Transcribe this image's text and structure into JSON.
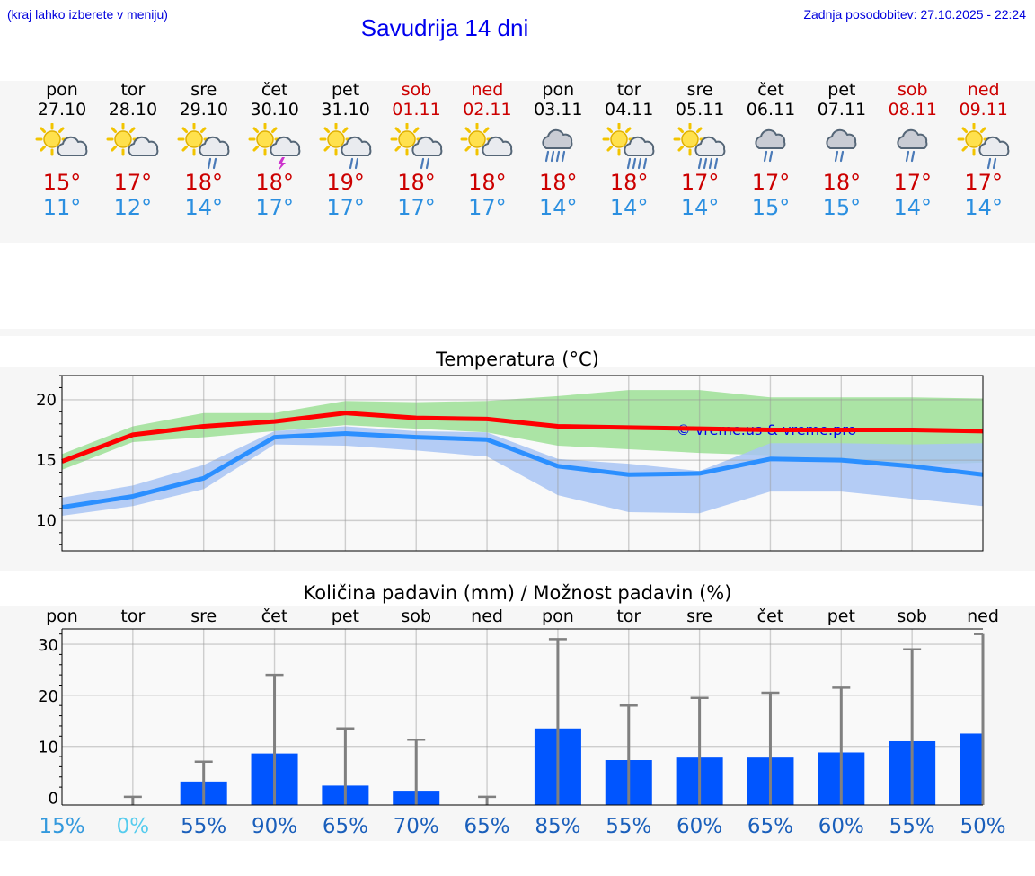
{
  "header": {
    "note": "(kraj lahko izberete v meniju)",
    "title": "Savudrija 14 dni",
    "updated": "Zadnja posodobitev: 27.10.2025 - 22:24"
  },
  "days": [
    {
      "name": "pon",
      "date": "27.10",
      "max": "15°",
      "min": "11°",
      "icon": "sun-cloud-icon",
      "weekend": false
    },
    {
      "name": "tor",
      "date": "28.10",
      "max": "17°",
      "min": "12°",
      "icon": "sun-cloud-icon",
      "weekend": false
    },
    {
      "name": "sre",
      "date": "29.10",
      "max": "18°",
      "min": "14°",
      "icon": "sun-cloud-rain-icon",
      "weekend": false
    },
    {
      "name": "čet",
      "date": "30.10",
      "max": "18°",
      "min": "17°",
      "icon": "sun-cloud-thunder-icon",
      "weekend": false
    },
    {
      "name": "pet",
      "date": "31.10",
      "max": "19°",
      "min": "17°",
      "icon": "sun-cloud-rain-icon",
      "weekend": false
    },
    {
      "name": "sob",
      "date": "01.11",
      "max": "18°",
      "min": "17°",
      "icon": "sun-cloud-rain-icon",
      "weekend": true
    },
    {
      "name": "ned",
      "date": "02.11",
      "max": "18°",
      "min": "17°",
      "icon": "sun-cloud-icon",
      "weekend": true
    },
    {
      "name": "pon",
      "date": "03.11",
      "max": "18°",
      "min": "14°",
      "icon": "cloud-heavy-rain-icon",
      "weekend": false
    },
    {
      "name": "tor",
      "date": "04.11",
      "max": "18°",
      "min": "14°",
      "icon": "sun-cloud-heavy-rain-icon",
      "weekend": false
    },
    {
      "name": "sre",
      "date": "05.11",
      "max": "17°",
      "min": "14°",
      "icon": "sun-cloud-heavy-rain-icon",
      "weekend": false
    },
    {
      "name": "čet",
      "date": "06.11",
      "max": "17°",
      "min": "15°",
      "icon": "cloud-rain-icon",
      "weekend": false
    },
    {
      "name": "pet",
      "date": "07.11",
      "max": "18°",
      "min": "15°",
      "icon": "cloud-rain-icon",
      "weekend": false
    },
    {
      "name": "sob",
      "date": "08.11",
      "max": "17°",
      "min": "14°",
      "icon": "cloud-rain-icon",
      "weekend": true
    },
    {
      "name": "ned",
      "date": "09.11",
      "max": "17°",
      "min": "14°",
      "icon": "sun-cloud-rain-icon",
      "weekend": true
    }
  ],
  "chart_data": [
    {
      "type": "line",
      "title": "Temperatura (°C)",
      "ylim": [
        7.5,
        22
      ],
      "yticks": [
        10,
        15,
        20
      ],
      "grid": true,
      "watermark": "© vreme.us & vreme.pro",
      "x": [
        0,
        1,
        2,
        3,
        4,
        5,
        6,
        7,
        8,
        9,
        10,
        11,
        12,
        13
      ],
      "series": [
        {
          "role": "max",
          "color": "#ff0000",
          "values": [
            14.9,
            17.1,
            17.8,
            18.2,
            18.9,
            18.5,
            18.4,
            17.8,
            17.7,
            17.6,
            17.5,
            17.5,
            17.5,
            17.4
          ]
        },
        {
          "role": "min",
          "color": "#2b8fff",
          "values": [
            11.1,
            12.0,
            13.5,
            16.9,
            17.2,
            16.9,
            16.7,
            14.5,
            13.8,
            13.9,
            15.1,
            15.0,
            14.5,
            13.8
          ]
        }
      ],
      "bands": [
        {
          "role": "max-range",
          "color": "#a6e3a0",
          "low": [
            14.2,
            16.5,
            16.9,
            17.4,
            17.9,
            17.6,
            17.3,
            16.2,
            15.9,
            15.6,
            15.4,
            14.8,
            14.6,
            14.8
          ],
          "high": [
            15.5,
            17.8,
            18.9,
            18.9,
            19.9,
            19.8,
            19.9,
            20.3,
            20.8,
            20.8,
            20.2,
            20.2,
            20.2,
            20.1
          ]
        },
        {
          "role": "min-range",
          "color": "#a8c4f4",
          "low": [
            10.4,
            11.2,
            12.6,
            16.3,
            16.2,
            15.8,
            15.3,
            12.1,
            10.7,
            10.6,
            12.4,
            12.4,
            11.8,
            11.2
          ],
          "high": [
            11.9,
            12.9,
            14.6,
            17.4,
            17.8,
            17.4,
            17.3,
            15.1,
            14.7,
            14.1,
            16.4,
            16.4,
            16.3,
            16.4
          ]
        }
      ]
    },
    {
      "type": "bar",
      "title": "Količina padavin (mm) / Možnost padavin (%)",
      "ylim": [
        -1.5,
        33
      ],
      "yticks": [
        0,
        10,
        20,
        30
      ],
      "grid": true,
      "categories": [
        "pon",
        "tor",
        "sre",
        "čet",
        "pet",
        "sob",
        "ned",
        "pon",
        "tor",
        "sre",
        "čet",
        "pet",
        "sob",
        "ned"
      ],
      "values": [
        0.0,
        0.0,
        3.1,
        8.6,
        2.3,
        1.3,
        0.0,
        13.5,
        7.3,
        7.8,
        7.8,
        8.8,
        11.0,
        12.5
      ],
      "errors_max": [
        0,
        0.1,
        7.0,
        24.0,
        13.5,
        11.3,
        0.1,
        31.0,
        18.0,
        19.5,
        20.5,
        21.5,
        29.0,
        32.0
      ],
      "bar_color": "#0055ff",
      "probability": [
        "15%",
        "0%",
        "55%",
        "90%",
        "65%",
        "70%",
        "65%",
        "85%",
        "55%",
        "60%",
        "65%",
        "60%",
        "55%",
        "50%"
      ],
      "probability_colors": [
        "#3399dd",
        "#55ccee",
        "#1a5fbb",
        "#1a5fbb",
        "#1a5fbb",
        "#1a5fbb",
        "#1a5fbb",
        "#1a5fbb",
        "#1a5fbb",
        "#1a5fbb",
        "#1a5fbb",
        "#1a5fbb",
        "#1a5fbb",
        "#1a5fbb"
      ]
    }
  ]
}
